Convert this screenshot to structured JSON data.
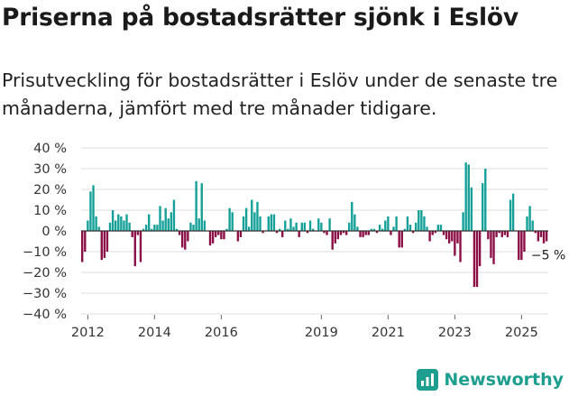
{
  "header": {
    "title": "Priserna på bostadsrätter sjönk i Eslöv",
    "subtitle": "Prisutveckling för bostadsrätter i Eslöv under de senaste tre månaderna, jämfört med tre månader tidigare."
  },
  "brand": {
    "name": "Newsworthy",
    "logo_icon": "bar-chart-logo-icon",
    "color": "#1e9e8f"
  },
  "colors": {
    "positive": "#14a098",
    "negative": "#8b0d45",
    "grid": "#dddddd",
    "zero_line": "#333333"
  },
  "chart_data": {
    "type": "bar",
    "title": "Priserna på bostadsrätter sjönk i Eslöv",
    "xlabel": "",
    "ylabel": "",
    "ylim": [
      -40,
      40
    ],
    "y_ticks": [
      40,
      30,
      20,
      10,
      0,
      -10,
      -20,
      -30,
      -40
    ],
    "y_tick_labels": [
      "40 %",
      "30 %",
      "20 %",
      "10 %",
      "0 %",
      "−10 %",
      "−20 %",
      "−30 %",
      "−40 %"
    ],
    "x_ticks": [
      2012,
      2014,
      2016,
      2019,
      2021,
      2023,
      2025
    ],
    "start": [
      2011,
      11
    ],
    "end_label": "−5 %",
    "series": [
      {
        "name": "Prisutveckling",
        "values": [
          -15,
          -10,
          5,
          19,
          22,
          7,
          2,
          -14,
          -13,
          -10,
          4,
          10,
          5,
          8,
          7,
          5,
          8,
          4,
          -3,
          -17,
          -2,
          -15,
          1,
          3,
          8,
          1,
          3,
          3,
          12,
          5,
          11,
          6,
          9,
          15,
          1,
          -2,
          -8,
          -9,
          -5,
          4,
          3,
          24,
          6,
          23,
          5,
          0,
          -7,
          -6,
          -3,
          -2,
          -4,
          -4,
          1,
          11,
          9,
          0,
          -5,
          -3,
          7,
          11,
          2,
          15,
          9,
          14,
          7,
          -1,
          0,
          7,
          8,
          8,
          -1,
          1,
          -3,
          5,
          1,
          6,
          2,
          4,
          -3,
          4,
          4,
          -1,
          5,
          1,
          0,
          6,
          4,
          -1,
          -2,
          6,
          -9,
          -6,
          -4,
          -2,
          -1,
          -2,
          4,
          14,
          8,
          2,
          -3,
          -3,
          -2,
          -2,
          1,
          1,
          -1,
          3,
          1,
          5,
          7,
          -2,
          2,
          7,
          -8,
          -8,
          1,
          7,
          3,
          -1,
          4,
          10,
          10,
          7,
          2,
          -5,
          -2,
          -1,
          3,
          3,
          -2,
          -4,
          -6,
          -5,
          -12,
          -6,
          -15,
          9,
          33,
          32,
          21,
          -27,
          -27,
          -17,
          23,
          30,
          -4,
          -13,
          -16,
          -3,
          -1,
          -3,
          -2,
          -3,
          15,
          18,
          0,
          -14,
          -14,
          -10,
          7,
          12,
          5,
          -1,
          -5,
          -3,
          -6,
          -5
        ]
      }
    ]
  }
}
